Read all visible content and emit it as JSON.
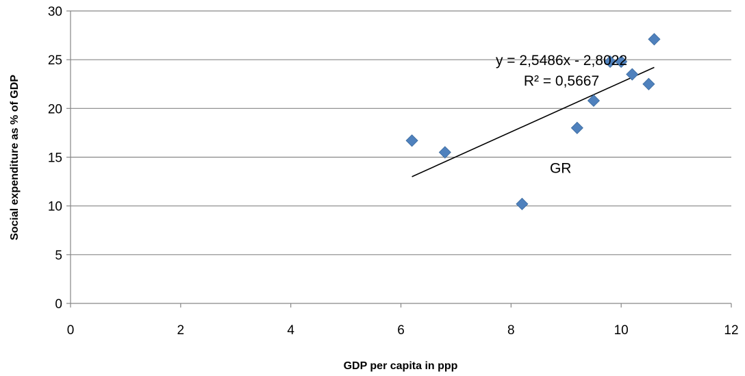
{
  "chart_data": {
    "type": "scatter",
    "title": "",
    "xlabel": "GDP per capita in ppp",
    "ylabel": "Social expenditure as % of GDP",
    "xlim": [
      0,
      12
    ],
    "ylim": [
      0,
      30
    ],
    "x_ticks": [
      0,
      2,
      4,
      6,
      8,
      10,
      12
    ],
    "y_ticks": [
      0,
      5,
      10,
      15,
      20,
      25,
      30
    ],
    "grid": "horizontal",
    "legend": "none",
    "marker": "diamond",
    "marker_color": "#4F81BD",
    "points": [
      {
        "x": 6.2,
        "y": 16.7
      },
      {
        "x": 6.8,
        "y": 15.5
      },
      {
        "x": 8.2,
        "y": 10.2
      },
      {
        "x": 9.2,
        "y": 18.0
      },
      {
        "x": 9.5,
        "y": 20.8
      },
      {
        "x": 9.8,
        "y": 24.8
      },
      {
        "x": 10.0,
        "y": 24.8
      },
      {
        "x": 10.2,
        "y": 23.5
      },
      {
        "x": 10.5,
        "y": 22.5
      },
      {
        "x": 10.6,
        "y": 27.1
      }
    ],
    "trendline": {
      "type": "linear",
      "slope": 2.5486,
      "intercept": -2.8022,
      "x_range": [
        6.2,
        10.6
      ],
      "equation_label": "y = 2,5486x - 2,8022",
      "r2_label": "R² = 0,5667"
    },
    "annotations": [
      {
        "text": "GR",
        "x": 8.9,
        "y": 14.1
      }
    ]
  }
}
